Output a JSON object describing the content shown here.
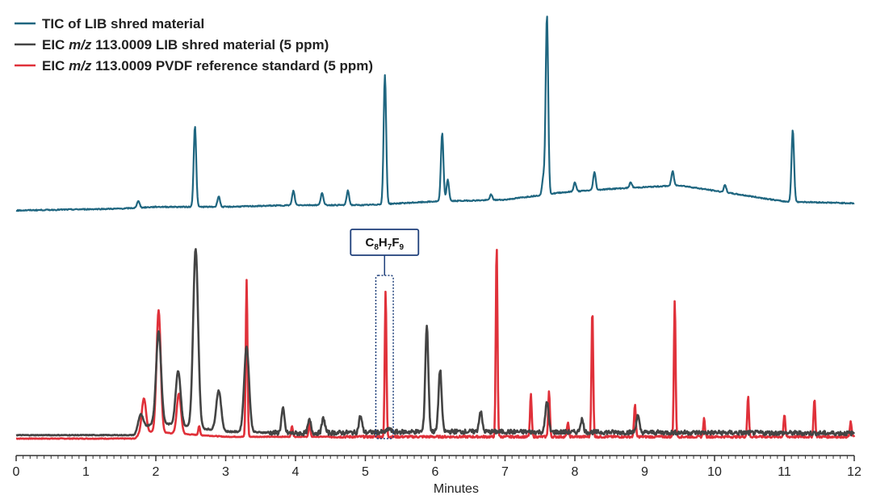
{
  "chart_data": {
    "type": "line",
    "title": "",
    "xlabel": "Minutes",
    "ylabel": "",
    "xlim": [
      0,
      12
    ],
    "x_ticks": [
      "0",
      "1",
      "2",
      "3",
      "4",
      "5",
      "6",
      "7",
      "8",
      "9",
      "10",
      "11",
      "12"
    ],
    "grid": false,
    "legend": [
      {
        "prefix": "TIC of LIB shred material",
        "italic": "",
        "suffix": "",
        "color": "#1f6680"
      },
      {
        "prefix": "EIC ",
        "italic": "m/z",
        "suffix": " 113.0009 LIB shred material (5 ppm)",
        "color": "#444444"
      },
      {
        "prefix": "EIC ",
        "italic": "m/z",
        "suffix": " 113.0009 PVDF reference standard (5 ppm)",
        "color": "#e0313a"
      }
    ],
    "annotation": {
      "text_main": [
        "C",
        "H",
        "F"
      ],
      "text_sub": [
        "8",
        "7",
        "9"
      ],
      "x_range": [
        5.15,
        5.4
      ],
      "label": "C8H7F9"
    },
    "series": [
      {
        "name": "TIC of LIB shred material",
        "color": "#1f6680",
        "baseline": [
          [
            0,
            0.02
          ],
          [
            1.5,
            0.03
          ],
          [
            2.0,
            0.04
          ],
          [
            3.0,
            0.04
          ],
          [
            4.0,
            0.05
          ],
          [
            5.0,
            0.05
          ],
          [
            6.0,
            0.07
          ],
          [
            7.0,
            0.08
          ],
          [
            7.8,
            0.12
          ],
          [
            8.5,
            0.14
          ],
          [
            9.0,
            0.15
          ],
          [
            9.5,
            0.16
          ],
          [
            10.0,
            0.13
          ],
          [
            10.5,
            0.1
          ],
          [
            11.0,
            0.07
          ],
          [
            12.0,
            0.06
          ]
        ],
        "peaks": [
          [
            1.75,
            0.04
          ],
          [
            2.56,
            0.45
          ],
          [
            2.9,
            0.06
          ],
          [
            3.97,
            0.08
          ],
          [
            4.38,
            0.07
          ],
          [
            4.75,
            0.08
          ],
          [
            5.28,
            0.72
          ],
          [
            6.1,
            0.38
          ],
          [
            6.18,
            0.12
          ],
          [
            6.8,
            0.03
          ],
          [
            7.55,
            0.1
          ],
          [
            7.6,
            1.0
          ],
          [
            8.0,
            0.05
          ],
          [
            8.28,
            0.1
          ],
          [
            8.8,
            0.03
          ],
          [
            9.4,
            0.08
          ],
          [
            10.15,
            0.04
          ],
          [
            11.12,
            0.4
          ]
        ],
        "y_scale_ref": 1.0
      },
      {
        "name": "EIC m/z 113.0009 LIB shred material (5 ppm)",
        "color": "#444444",
        "baseline": [
          [
            0,
            0.01
          ],
          [
            1.7,
            0.01
          ],
          [
            1.8,
            0.05
          ],
          [
            2.0,
            0.08
          ],
          [
            3.0,
            0.03
          ],
          [
            4.0,
            0.02
          ],
          [
            6.0,
            0.03
          ],
          [
            12.0,
            0.02
          ]
        ],
        "peaks": [
          [
            1.78,
            0.08
          ],
          [
            2.04,
            0.5
          ],
          [
            2.32,
            0.3
          ],
          [
            2.57,
            0.98
          ],
          [
            2.9,
            0.22
          ],
          [
            3.3,
            0.47
          ],
          [
            3.82,
            0.13
          ],
          [
            4.2,
            0.07
          ],
          [
            4.4,
            0.08
          ],
          [
            4.93,
            0.09
          ],
          [
            5.34,
            0.02
          ],
          [
            5.88,
            0.58
          ],
          [
            6.07,
            0.34
          ],
          [
            6.65,
            0.11
          ],
          [
            7.6,
            0.17
          ],
          [
            8.1,
            0.07
          ],
          [
            8.9,
            0.09
          ]
        ],
        "y_scale_ref": 1.0
      },
      {
        "name": "EIC m/z 113.0009 PVDF reference standard (5 ppm)",
        "color": "#e0313a",
        "baseline": [
          [
            0,
            0.0
          ],
          [
            1.7,
            0.0
          ],
          [
            1.8,
            0.04
          ],
          [
            2.2,
            0.03
          ],
          [
            3.0,
            0.01
          ],
          [
            12.0,
            0.01
          ]
        ],
        "peaks": [
          [
            1.83,
            0.18
          ],
          [
            2.04,
            0.67
          ],
          [
            2.33,
            0.22
          ],
          [
            2.62,
            0.05
          ],
          [
            3.3,
            0.86
          ],
          [
            3.95,
            0.06
          ],
          [
            4.2,
            0.08
          ],
          [
            5.29,
            0.8
          ],
          [
            6.88,
            1.05
          ],
          [
            7.37,
            0.23
          ],
          [
            7.63,
            0.25
          ],
          [
            7.9,
            0.08
          ],
          [
            8.25,
            0.7
          ],
          [
            8.86,
            0.18
          ],
          [
            9.43,
            0.75
          ],
          [
            9.85,
            0.1
          ],
          [
            10.48,
            0.22
          ],
          [
            11.0,
            0.12
          ],
          [
            11.43,
            0.21
          ],
          [
            11.95,
            0.08
          ]
        ],
        "y_scale_ref": 1.0
      }
    ]
  }
}
